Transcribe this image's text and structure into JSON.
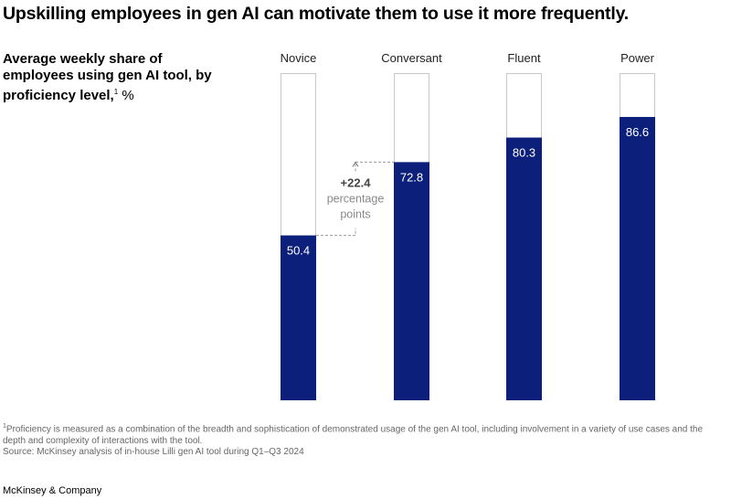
{
  "title": "Upskilling employees in gen AI can motivate them to use it more frequently.",
  "chart_data": {
    "type": "bar",
    "subtitle": "Average weekly share of employees using gen AI tool, by proficiency level,",
    "subtitle_footnote": "1",
    "unit": "%",
    "categories": [
      "Novice",
      "Conversant",
      "Fluent",
      "Power"
    ],
    "values": [
      50.4,
      72.8,
      80.3,
      86.6
    ],
    "ylim": [
      0,
      100
    ],
    "bar_color": "#0c1f7a",
    "annotation": {
      "value": "+22.4",
      "text1": "percentage",
      "text2": "points",
      "from": "Novice",
      "to": "Conversant"
    }
  },
  "footnote": "Proficiency is measured as a combination of the breadth and sophistication of demonstrated usage of the gen AI tool, including involvement in a variety of use cases and the depth and complexity of interactions with the tool.",
  "footnote_marker": "1",
  "source": "Source: McKinsey analysis of in-house Lilli gen AI tool during Q1–Q3 2024",
  "brand": "McKinsey & Company"
}
